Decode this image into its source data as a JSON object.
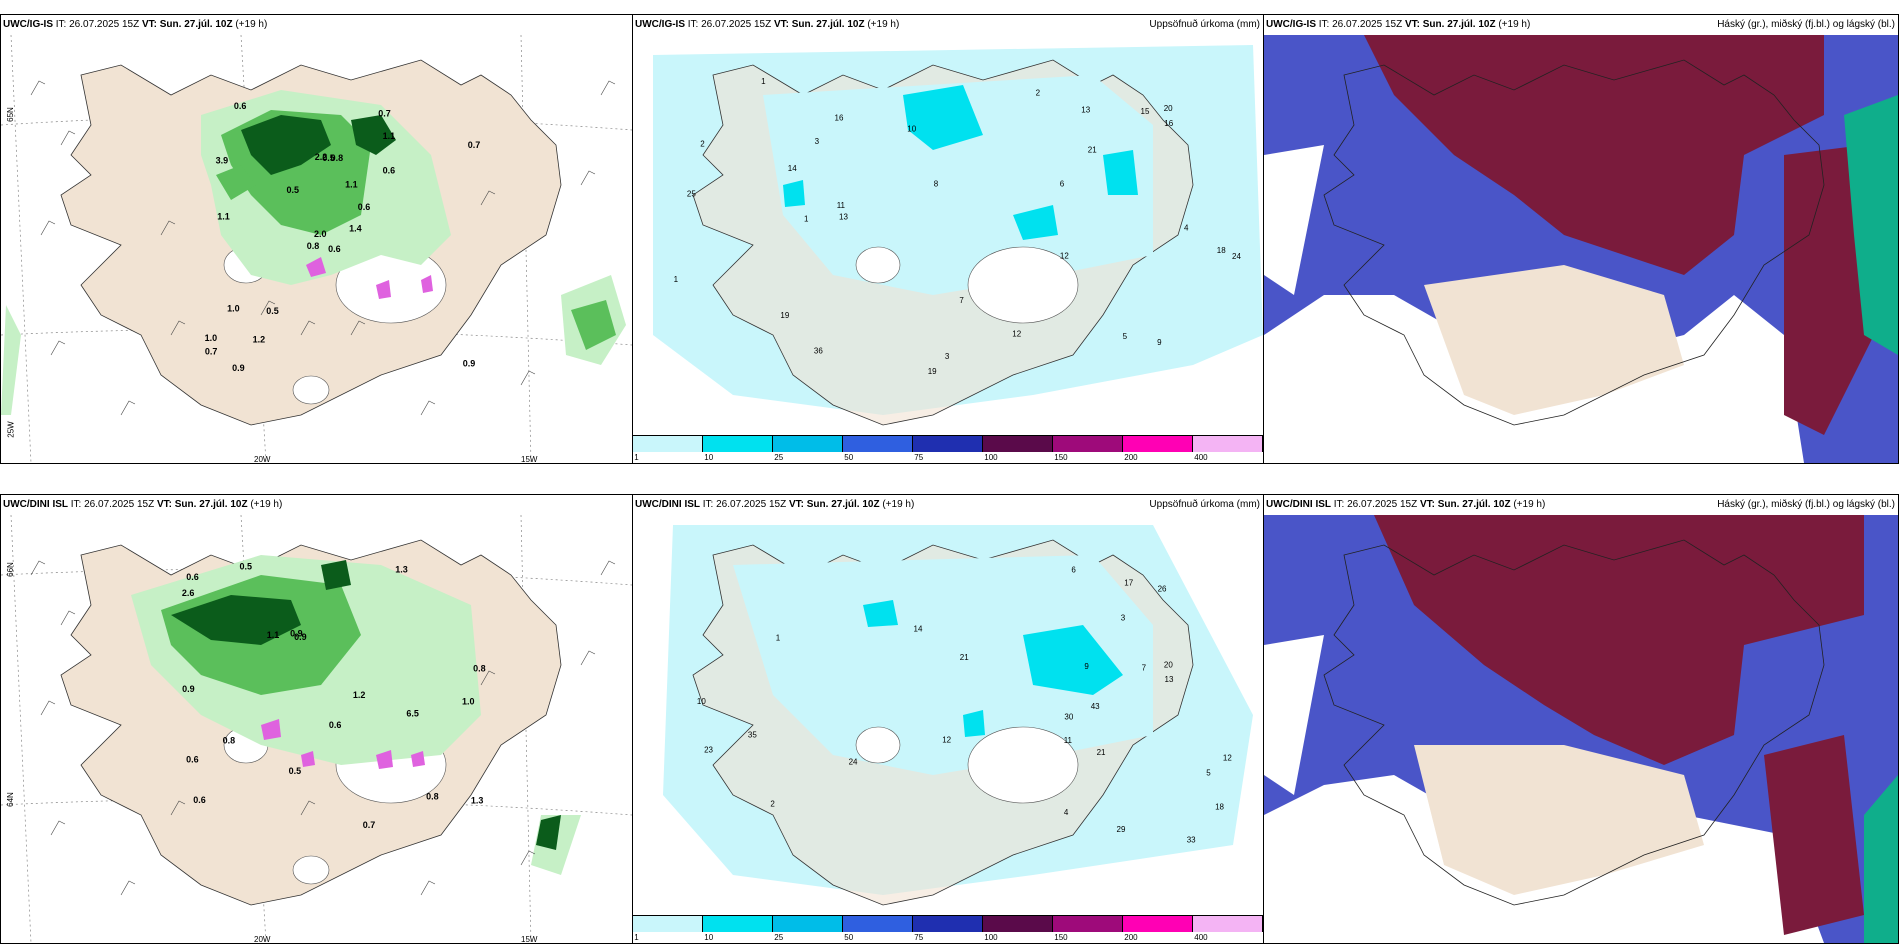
{
  "colors": {
    "land": "#f1e3d3",
    "precip_light": "#c6f0c6",
    "precip_mid": "#5bbf5b",
    "precip_dark": "#0b5c1b",
    "accum_light": "#c9f6fb",
    "accum_mid": "#00e1ef",
    "cloud_high": "#7a1b3c",
    "cloud_mid": "#4a55c8",
    "ocean_green": "#0fae8b"
  },
  "rows": [
    {
      "model": "UWC/IG-IS",
      "it_label": "IT:",
      "it_value": "26.07.2025 15Z",
      "vt_label": "VT:",
      "vt_value": "Sun. 27.júl. 10Z",
      "lead": "(+19 h)"
    },
    {
      "model": "UWC/DINI ISL",
      "it_label": "IT:",
      "it_value": "26.07.2025 15Z",
      "vt_label": "VT:",
      "vt_value": "Sun. 27.júl. 10Z",
      "lead": "(+19 h)"
    }
  ],
  "panel_titles": {
    "accum": "Uppsöfnuð úrkoma (mm)",
    "cloud": "Háský (gr.), miðský (fj.bl.) og lágský (bl.)"
  },
  "grid_labels": {
    "lon_20w": "20W",
    "lon_15w": "15W",
    "lon_25w": "25W",
    "lat_66n": "66N",
    "lat_64n": "64N",
    "lat_65n": "65N"
  },
  "colorbar": {
    "ticks": [
      "1",
      "10",
      "25",
      "50",
      "75",
      "100",
      "150",
      "200",
      "400"
    ],
    "colors": [
      "#c9f6fb",
      "#00e1ef",
      "#00bde8",
      "#2f5fe0",
      "#1f2fb0",
      "#5a0a4a",
      "#9e0a7a",
      "#ff00b4",
      "#f4b4f4"
    ]
  },
  "precip_values_top": [
    "0.6",
    "3.9",
    "2.0",
    "1.0",
    "0.6",
    "0.5",
    "0.7",
    "0.8",
    "1.1",
    "1.4",
    "0.6",
    "0.9",
    "1.1",
    "0.7",
    "0.8",
    "0.6",
    "0.9",
    "2.2",
    "1.1",
    "1.0",
    "0.5",
    "0.7",
    "1.2",
    "0.5"
  ],
  "precip_values_bottom": [
    "6.5",
    "1.0",
    "0.6",
    "0.5",
    "0.9",
    "0.8",
    "0.6",
    "1.3",
    "1.1",
    "0.7",
    "2.6",
    "0.9",
    "0.6",
    "1.3",
    "0.5",
    "0.8",
    "0.6",
    "1.2",
    "0.9",
    "0.8"
  ],
  "accum_values_top": [
    "2",
    "3",
    "6",
    "3",
    "15",
    "19",
    "12",
    "13",
    "20",
    "24",
    "18",
    "16",
    "21",
    "19",
    "25",
    "36",
    "11",
    "10",
    "9",
    "12",
    "5",
    "4",
    "8",
    "7",
    "13",
    "14",
    "16",
    "2",
    "1",
    "1",
    "1"
  ],
  "accum_values_bottom": [
    "11",
    "12",
    "7",
    "5",
    "4",
    "3",
    "20",
    "21",
    "18",
    "29",
    "43",
    "30",
    "23",
    "21",
    "24",
    "33",
    "26",
    "35",
    "17",
    "14",
    "12",
    "10",
    "9",
    "6",
    "13",
    "2",
    "1"
  ]
}
